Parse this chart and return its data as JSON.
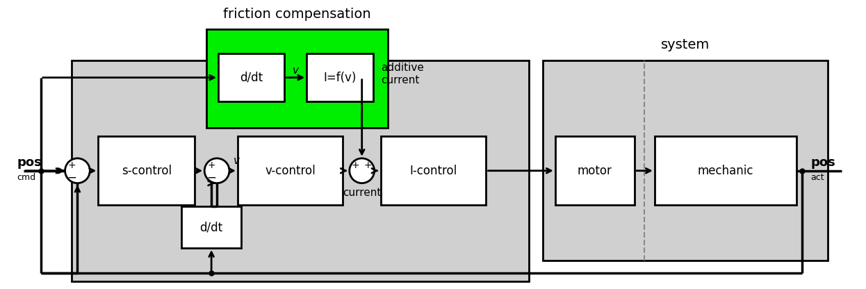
{
  "fig_width": 12.46,
  "fig_height": 4.16,
  "bg_color": "#ffffff",
  "gray_main": "#d0d0d0",
  "gray_system": "#d0d0d0",
  "green_bg": "#00ee00",
  "white": "#ffffff",
  "black": "#000000",
  "friction_label": "friction compensation",
  "system_label": "system",
  "additive_current_label": "additive\ncurrent",
  "current_label": "current",
  "v_label": "v",
  "pos_cmd_main": "pos",
  "pos_cmd_sub": "cmd",
  "pos_act_main": "pos",
  "pos_act_sub": "act",
  "lw_main": 2.0,
  "lw_block": 2.0,
  "circle_r": 0.022
}
